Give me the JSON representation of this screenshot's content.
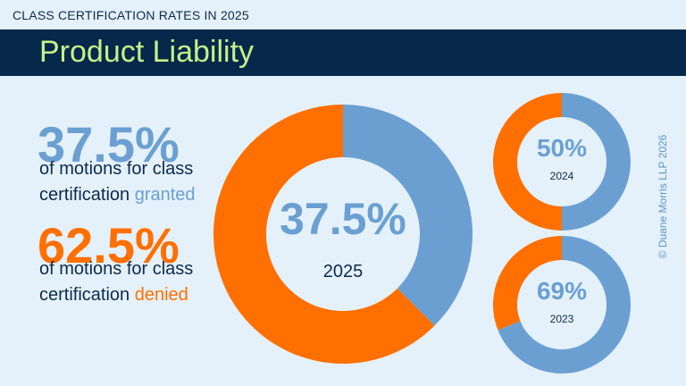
{
  "header": {
    "kicker": "CLASS CERTIFICATION RATES IN 2025",
    "title": "Product Liability"
  },
  "stats": {
    "granted": {
      "value": "37.5%",
      "line1": "of motions for class",
      "line2_prefix": "certification ",
      "line2_emphasis": "granted"
    },
    "denied": {
      "value": "62.5%",
      "line1": "of motions for class",
      "line2_prefix": "certification ",
      "line2_emphasis": "denied"
    }
  },
  "colors": {
    "granted": "#6b9fd1",
    "denied": "#ff7000",
    "text_dark": "#0d2a4a",
    "background": "#e4f1fb",
    "banner": "#06284a"
  },
  "chart_data": [
    {
      "type": "pie",
      "year": "2025",
      "center_label": "37.5%",
      "slices": [
        {
          "category": "granted",
          "value": 37.5
        },
        {
          "category": "denied",
          "value": 62.5
        }
      ]
    },
    {
      "type": "pie",
      "year": "2024",
      "center_label": "50%",
      "slices": [
        {
          "category": "granted",
          "value": 50
        },
        {
          "category": "denied",
          "value": 50
        }
      ]
    },
    {
      "type": "pie",
      "year": "2023",
      "center_label": "69%",
      "slices": [
        {
          "category": "granted",
          "value": 69
        },
        {
          "category": "denied",
          "value": 31
        }
      ]
    }
  ],
  "copyright": "© Duane Morris LLP 2026"
}
